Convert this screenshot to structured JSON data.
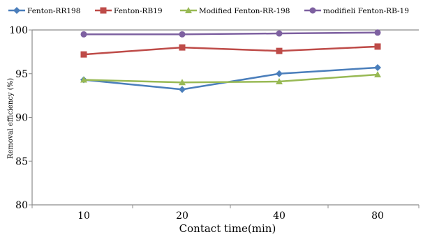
{
  "chart_data": {
    "type": "line",
    "categories": [
      "10",
      "20",
      "40",
      "80"
    ],
    "xlabel": "Contact time(min)",
    "ylabel": "Removal efficiency (%)",
    "ylim": [
      80,
      100
    ],
    "yticks": [
      "80",
      "85",
      "90",
      "95",
      "100"
    ],
    "grid": false,
    "legend_position": "top",
    "series": [
      {
        "name": "Fenton-RR198",
        "values": [
          94.3,
          93.2,
          95.0,
          95.7
        ],
        "color": "#4a7ebb",
        "marker": "diamond"
      },
      {
        "name": "Fenton-RB19",
        "values": [
          97.2,
          98.0,
          97.6,
          98.1
        ],
        "color": "#be4b48",
        "marker": "square"
      },
      {
        "name": "Modified Fenton-RR-198",
        "values": [
          94.3,
          94.0,
          94.1,
          94.9
        ],
        "color": "#98b954",
        "marker": "triangle"
      },
      {
        "name": "modifieli Fenton-RB-19",
        "values": [
          99.5,
          99.5,
          99.6,
          99.7
        ],
        "color": "#7d60a0",
        "marker": "circle"
      }
    ]
  }
}
